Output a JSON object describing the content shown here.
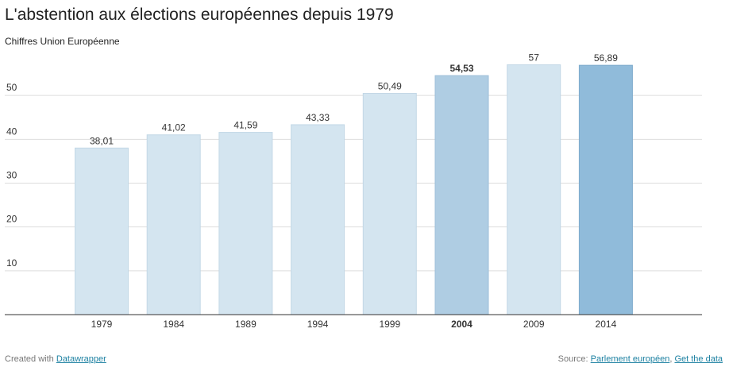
{
  "header": {
    "title": "L'abstention aux élections européennes depuis 1979",
    "subtitle": "Chiffres Union Européenne"
  },
  "footer": {
    "created_prefix": "Created with",
    "created_link": "Datawrapper",
    "source_prefix": "Source:",
    "source_link": "Parlement européen",
    "separator": ",",
    "get_data_link": "Get the data"
  },
  "chart_data": {
    "type": "bar",
    "categories": [
      "1979",
      "1984",
      "1989",
      "1994",
      "1999",
      "2004",
      "2009",
      "2014"
    ],
    "values": [
      38.01,
      41.02,
      41.59,
      43.33,
      50.49,
      54.53,
      57,
      56.89
    ],
    "value_labels": [
      "38,01",
      "41,02",
      "41,59",
      "43,33",
      "50,49",
      "54,53",
      "57",
      "56,89"
    ],
    "title": "L'abstention aux élections européennes depuis 1979",
    "subtitle": "Chiffres Union Européenne",
    "ylim": [
      0,
      60
    ],
    "yticks": [
      10,
      20,
      30,
      40,
      50
    ],
    "grid": true,
    "highlighted": [
      "2004",
      "2014"
    ],
    "colors": {
      "default": "#d4e5f0",
      "highlight_2004": "#afcde3",
      "highlight_2014": "#90bbda",
      "grid": "#dddddd",
      "axis": "#333333"
    }
  }
}
